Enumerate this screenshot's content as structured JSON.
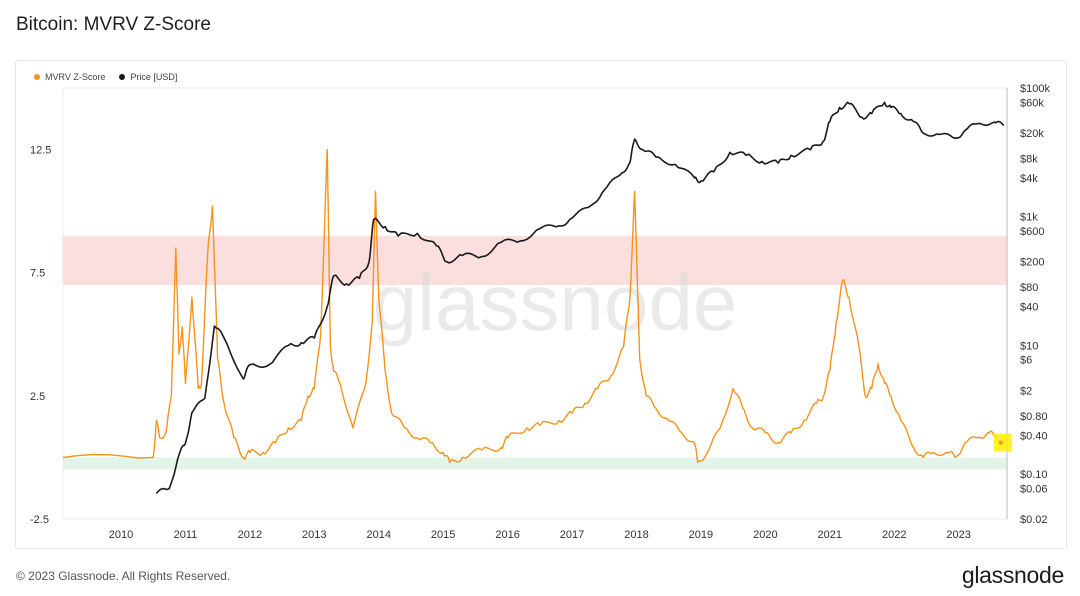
{
  "header": {
    "title": "Bitcoin: MVRV Z-Score"
  },
  "footer": {
    "copyright": "© 2023 Glassnode. All Rights Reserved.",
    "brand": "glassnode"
  },
  "colors": {
    "zscore": "#f7931a",
    "price": "#1a1a1a",
    "sell_band": "#fbdede",
    "buy_band": "#e3f5e8",
    "highlight": "#ffee00"
  },
  "chart_data": {
    "type": "line",
    "title": "Bitcoin: MVRV Z-Score",
    "watermark": "glassnode",
    "legend": [
      {
        "name": "MVRV Z-Score",
        "color": "#f7931a"
      },
      {
        "name": "Price [USD]",
        "color": "#1a1a1a"
      }
    ],
    "legend_position": "top-left",
    "grid": false,
    "x_ticks": [
      "2010",
      "2011",
      "2012",
      "2013",
      "2014",
      "2015",
      "2016",
      "2017",
      "2018",
      "2019",
      "2020",
      "2021",
      "2022",
      "2023"
    ],
    "xlim": [
      2009.1,
      2023.75
    ],
    "y_left": {
      "label": "MVRV Z-Score",
      "ticks": [
        "12.5",
        "7.5",
        "2.5",
        "-2.5"
      ],
      "tick_values": [
        12.5,
        7.5,
        2.5,
        -2.5
      ],
      "ylim": [
        -2.5,
        15
      ]
    },
    "y_right": {
      "label": "Price [USD]",
      "scale": "log",
      "ticks": [
        "$100k",
        "$60k",
        "$20k",
        "$8k",
        "$4k",
        "$1k",
        "$600",
        "$200",
        "$80",
        "$40",
        "$10",
        "$6",
        "$2",
        "$0.80",
        "$0.40",
        "$0.10",
        "$0.06",
        "$0.02"
      ],
      "tick_values": [
        100000,
        60000,
        20000,
        8000,
        4000,
        1000,
        600,
        200,
        80,
        40,
        10,
        6,
        2,
        0.8,
        0.4,
        0.1,
        0.06,
        0.02
      ],
      "ylim": [
        0.02,
        100000
      ]
    },
    "bands": [
      {
        "name": "sell-zone",
        "from": 7,
        "to": 9,
        "color": "#fbdede"
      },
      {
        "name": "buy-zone",
        "from": -0.5,
        "to": 0,
        "color": "#e3f5e8"
      }
    ],
    "series": [
      {
        "name": "MVRV Z-Score",
        "axis": "left",
        "x": [
          2009.1,
          2010.5,
          2010.55,
          2010.6,
          2010.7,
          2010.78,
          2010.85,
          2010.9,
          2010.95,
          2011.0,
          2011.1,
          2011.2,
          2011.25,
          2011.35,
          2011.42,
          2011.5,
          2011.6,
          2011.75,
          2011.9,
          2012.0,
          2012.2,
          2012.4,
          2012.6,
          2012.8,
          2012.9,
          2013.0,
          2013.1,
          2013.2,
          2013.25,
          2013.3,
          2013.4,
          2013.6,
          2013.8,
          2013.9,
          2013.95,
          2014.0,
          2014.1,
          2014.2,
          2014.4,
          2014.6,
          2014.8,
          2015.0,
          2015.1,
          2015.3,
          2015.6,
          2015.9,
          2016.0,
          2016.3,
          2016.5,
          2016.8,
          2017.0,
          2017.2,
          2017.4,
          2017.6,
          2017.8,
          2017.9,
          2017.97,
          2018.05,
          2018.15,
          2018.3,
          2018.5,
          2018.7,
          2018.9,
          2018.95,
          2019.1,
          2019.3,
          2019.5,
          2019.65,
          2019.8,
          2020.0,
          2020.2,
          2020.4,
          2020.6,
          2020.8,
          2020.9,
          2021.0,
          2021.1,
          2021.2,
          2021.3,
          2021.45,
          2021.55,
          2021.65,
          2021.75,
          2021.85,
          2021.95,
          2022.1,
          2022.3,
          2022.45,
          2022.6,
          2022.85,
          2022.95,
          2023.1,
          2023.3,
          2023.45,
          2023.55,
          2023.7
        ],
        "values": [
          0,
          0,
          1.5,
          0.8,
          1.0,
          2.5,
          8.5,
          4.2,
          5.3,
          3.0,
          6.5,
          2.8,
          3.0,
          8.5,
          10.2,
          4.0,
          2.2,
          0.8,
          0.0,
          0.2,
          0.2,
          0.6,
          1.2,
          1.5,
          2.5,
          2.8,
          5.0,
          12.5,
          4.5,
          3.5,
          3.0,
          1.2,
          3.0,
          5.5,
          10.8,
          6.5,
          3.5,
          1.8,
          1.2,
          0.8,
          0.6,
          0.2,
          -0.2,
          0.0,
          0.3,
          0.4,
          0.8,
          1.2,
          1.3,
          1.5,
          1.8,
          2.2,
          2.8,
          3.3,
          4.5,
          6.5,
          10.8,
          4.0,
          2.5,
          2.0,
          1.5,
          1.0,
          0.6,
          -0.2,
          0.2,
          1.2,
          2.8,
          2.0,
          1.2,
          1.0,
          0.6,
          1.0,
          1.5,
          2.2,
          2.5,
          3.5,
          5.5,
          7.2,
          6.5,
          4.5,
          2.5,
          2.8,
          3.8,
          3.0,
          2.5,
          1.5,
          0.4,
          0.0,
          0.2,
          0.2,
          0.0,
          0.6,
          0.8,
          1.0,
          0.9,
          0.6
        ]
      },
      {
        "name": "Price [USD]",
        "axis": "right",
        "x": [
          2010.55,
          2010.75,
          2010.9,
          2011.0,
          2011.1,
          2011.3,
          2011.45,
          2011.6,
          2011.9,
          2012.0,
          2012.3,
          2012.6,
          2012.8,
          2013.0,
          2013.2,
          2013.3,
          2013.5,
          2013.7,
          2013.85,
          2013.92,
          2014.1,
          2014.3,
          2014.6,
          2014.9,
          2015.05,
          2015.3,
          2015.6,
          2015.9,
          2016.2,
          2016.5,
          2016.8,
          2017.0,
          2017.3,
          2017.5,
          2017.75,
          2017.9,
          2017.97,
          2018.1,
          2018.3,
          2018.6,
          2018.9,
          2019.0,
          2019.2,
          2019.45,
          2019.7,
          2019.95,
          2020.2,
          2020.4,
          2020.7,
          2020.9,
          2021.0,
          2021.15,
          2021.3,
          2021.5,
          2021.65,
          2021.85,
          2021.95,
          2022.1,
          2022.3,
          2022.45,
          2022.7,
          2022.95,
          2023.1,
          2023.3,
          2023.55,
          2023.7
        ],
        "values": [
          0.05,
          0.06,
          0.2,
          0.3,
          0.9,
          1.5,
          20,
          13,
          3,
          5,
          5,
          10,
          11,
          13,
          40,
          120,
          90,
          110,
          200,
          900,
          700,
          500,
          550,
          350,
          200,
          250,
          240,
          400,
          420,
          650,
          720,
          950,
          1500,
          2600,
          4500,
          7000,
          16000,
          11000,
          8500,
          6500,
          4000,
          3600,
          5000,
          10000,
          9000,
          7200,
          6800,
          9000,
          11000,
          15000,
          30000,
          50000,
          57000,
          35000,
          40000,
          60000,
          50000,
          40000,
          30000,
          20000,
          19000,
          16500,
          22000,
          28000,
          29500,
          26000
        ]
      }
    ]
  }
}
